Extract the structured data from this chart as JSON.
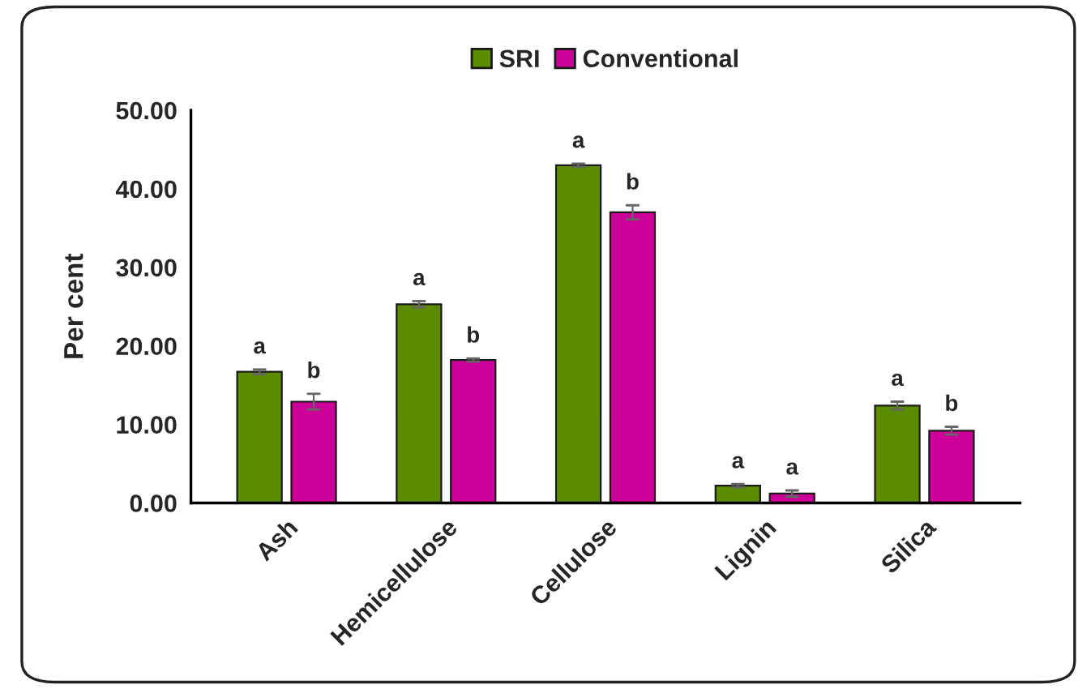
{
  "chart_data": {
    "type": "bar",
    "ylabel": "Per cent",
    "categories": [
      "Ash",
      "Hemicellulose",
      "Cellulose",
      "Lignin",
      "Silica"
    ],
    "series": [
      {
        "name": "SRI",
        "color": "#5b8c00",
        "values": [
          16.7,
          25.3,
          43.0,
          2.2,
          12.4
        ],
        "errors": [
          0.3,
          0.4,
          0.2,
          0.2,
          0.5
        ],
        "value_labels": [
          "a",
          "a",
          "a",
          "a",
          "a"
        ]
      },
      {
        "name": "Conventional",
        "color": "#cc0099",
        "values": [
          12.9,
          18.2,
          37.0,
          1.2,
          9.2
        ],
        "errors": [
          1.0,
          0.2,
          0.9,
          0.4,
          0.5
        ],
        "value_labels": [
          "b",
          "b",
          "b",
          "a",
          "b"
        ]
      }
    ],
    "ylim": [
      0,
      50
    ],
    "yticks": [
      {
        "value": 0,
        "label": "0.00"
      },
      {
        "value": 10,
        "label": "10.00"
      },
      {
        "value": 20,
        "label": "20.00"
      },
      {
        "value": 30,
        "label": "30.00"
      },
      {
        "value": 40,
        "label": "40.00"
      },
      {
        "value": 50,
        "label": "50.00"
      }
    ],
    "grid": false,
    "legend": "top"
  }
}
